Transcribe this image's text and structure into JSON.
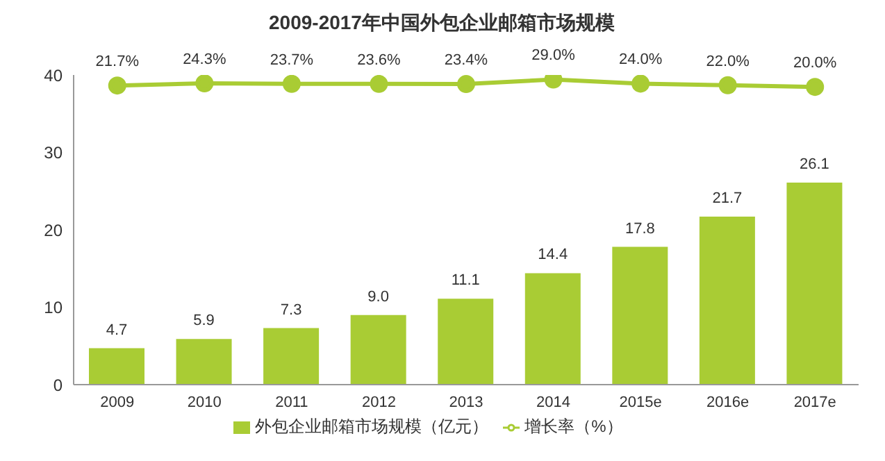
{
  "chart_data": {
    "type": "bar",
    "title": "2009-2017年中国外包企业邮箱市场规模",
    "categories": [
      "2009",
      "2010",
      "2011",
      "2012",
      "2013",
      "2014",
      "2015e",
      "2016e",
      "2017e"
    ],
    "series": [
      {
        "name": "外包企业邮箱市场规模（亿元）",
        "color": "#a9cc34",
        "values": [
          4.7,
          5.9,
          7.3,
          9.0,
          11.1,
          14.4,
          17.8,
          21.7,
          26.1
        ],
        "value_labels": [
          "4.7",
          "5.9",
          "7.3",
          "9.0",
          "11.1",
          "14.4",
          "17.8",
          "21.7",
          "26.1"
        ]
      },
      {
        "name": "增长率（%）",
        "type": "line",
        "axis": "y2",
        "color": "#a9cc34",
        "marker": "circle",
        "values": [
          21.7,
          24.3,
          23.7,
          23.6,
          23.4,
          29.0,
          24.0,
          22.0,
          20.0
        ],
        "value_labels": [
          "21.7%",
          "24.3%",
          "23.7%",
          "23.6%",
          "23.4%",
          "29.0%",
          "24.0%",
          "22.0%",
          "20.0%"
        ]
      }
    ],
    "ylim": [
      0,
      40
    ],
    "yticks": [
      0,
      10,
      20,
      30,
      40
    ],
    "legend": "bottom"
  }
}
